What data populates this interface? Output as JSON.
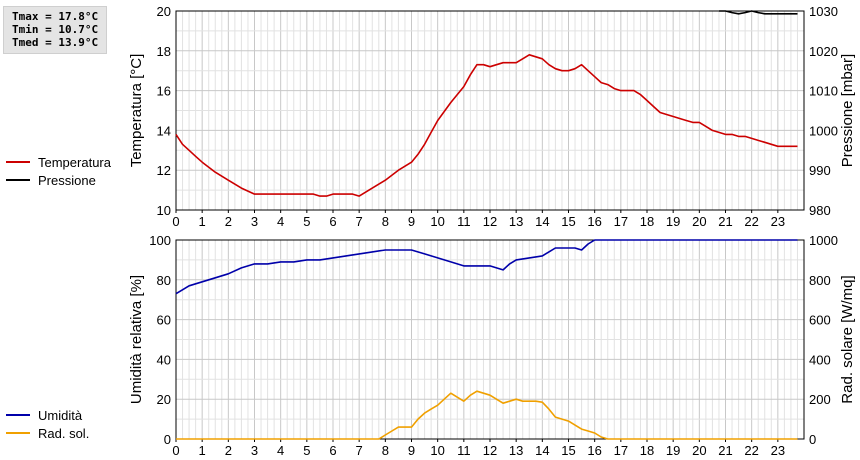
{
  "stats": {
    "tmax": "Tmax = 17.8°C",
    "tmin": "Tmin = 10.7°C",
    "tmed": "Tmed = 13.9°C"
  },
  "chart_data": [
    {
      "type": "line",
      "grid": true,
      "x_ticks": [
        0,
        1,
        2,
        3,
        4,
        5,
        6,
        7,
        8,
        9,
        10,
        11,
        12,
        13,
        14,
        15,
        16,
        17,
        18,
        19,
        20,
        21,
        22,
        23
      ],
      "xlim": [
        0,
        24
      ],
      "ylabel_left": "Temperatura [°C]",
      "ylabel_right": "Pressione [mbar]",
      "ylim_left": [
        10,
        20
      ],
      "yticks_left": [
        10,
        12,
        14,
        16,
        18,
        20
      ],
      "ylim_right": [
        980,
        1030
      ],
      "yticks_right": [
        980,
        990,
        1000,
        1010,
        1020,
        1030
      ],
      "legend": [
        "Temperatura",
        "Pressione"
      ],
      "legend_placement": "left",
      "series": [
        {
          "name": "Temperatura",
          "axis": "left",
          "color": "#cc0000",
          "x": [
            0,
            0.25,
            0.5,
            0.75,
            1,
            1.5,
            2,
            2.5,
            3,
            3.5,
            4,
            4.5,
            5,
            5.25,
            5.5,
            5.75,
            6,
            6.25,
            6.5,
            6.75,
            7,
            7.5,
            8,
            8.5,
            9,
            9.25,
            9.5,
            9.75,
            10,
            10.5,
            11,
            11.25,
            11.5,
            11.75,
            12,
            12.25,
            12.5,
            12.75,
            13,
            13.25,
            13.5,
            13.75,
            14,
            14.25,
            14.5,
            14.75,
            15,
            15.25,
            15.5,
            15.75,
            16,
            16.25,
            16.5,
            16.75,
            17,
            17.25,
            17.5,
            17.75,
            18,
            18.25,
            18.5,
            18.75,
            19,
            19.25,
            19.5,
            19.75,
            20,
            20.25,
            20.5,
            20.75,
            21,
            21.25,
            21.5,
            21.75,
            22,
            22.25,
            22.5,
            22.75,
            23,
            23.25,
            23.5,
            23.75
          ],
          "y": [
            13.8,
            13.3,
            13.0,
            12.7,
            12.4,
            11.9,
            11.5,
            11.1,
            10.8,
            10.8,
            10.8,
            10.8,
            10.8,
            10.8,
            10.7,
            10.7,
            10.8,
            10.8,
            10.8,
            10.8,
            10.7,
            11.1,
            11.5,
            12.0,
            12.4,
            12.8,
            13.3,
            13.9,
            14.5,
            15.4,
            16.2,
            16.8,
            17.3,
            17.3,
            17.2,
            17.3,
            17.4,
            17.4,
            17.4,
            17.6,
            17.8,
            17.7,
            17.6,
            17.3,
            17.1,
            17.0,
            17.0,
            17.1,
            17.3,
            17.0,
            16.7,
            16.4,
            16.3,
            16.1,
            16.0,
            16.0,
            16.0,
            15.8,
            15.5,
            15.2,
            14.9,
            14.8,
            14.7,
            14.6,
            14.5,
            14.4,
            14.4,
            14.2,
            14.0,
            13.9,
            13.8,
            13.8,
            13.7,
            13.7,
            13.6,
            13.5,
            13.4,
            13.3,
            13.2,
            13.2,
            13.2,
            13.2
          ]
        },
        {
          "name": "Pressione",
          "axis": "right",
          "color": "#000000",
          "x": [
            20.75,
            21,
            21.25,
            21.5,
            21.75,
            22,
            22.25,
            22.5,
            22.75,
            23,
            23.25,
            23.5,
            23.75
          ],
          "y": [
            1030,
            1030,
            1029.6,
            1029.3,
            1029.6,
            1030,
            1029.6,
            1029.3,
            1029.3,
            1029.3,
            1029.3,
            1029.3,
            1029.3
          ]
        }
      ]
    },
    {
      "type": "line",
      "grid": true,
      "x_ticks": [
        0,
        1,
        2,
        3,
        4,
        5,
        6,
        7,
        8,
        9,
        10,
        11,
        12,
        13,
        14,
        15,
        16,
        17,
        18,
        19,
        20,
        21,
        22,
        23
      ],
      "xlim": [
        0,
        24
      ],
      "ylabel_left": "Umidità relativa [%]",
      "ylabel_right": "Rad. solare [W/mq]",
      "ylim_left": [
        0,
        100
      ],
      "yticks_left": [
        0,
        20,
        40,
        60,
        80,
        100
      ],
      "ylim_right": [
        0,
        1000
      ],
      "yticks_right": [
        0,
        200,
        400,
        600,
        800,
        1000
      ],
      "legend": [
        "Umidità",
        "Rad. sol."
      ],
      "legend_placement": "left",
      "series": [
        {
          "name": "Umidità",
          "axis": "left",
          "color": "#0000aa",
          "x": [
            0,
            0.25,
            0.5,
            1,
            1.5,
            2,
            2.5,
            3,
            3.5,
            4,
            4.5,
            5,
            5.5,
            6,
            6.5,
            7,
            7.5,
            8,
            8.5,
            9,
            9.5,
            10,
            10.5,
            11,
            11.5,
            12,
            12.25,
            12.5,
            12.75,
            13,
            13.5,
            14,
            14.25,
            14.5,
            15,
            15.25,
            15.5,
            15.75,
            16,
            16.5,
            17,
            18,
            19,
            20,
            21,
            22,
            23,
            23.75
          ],
          "y": [
            73,
            75,
            77,
            79,
            81,
            83,
            86,
            88,
            88,
            89,
            89,
            90,
            90,
            91,
            92,
            93,
            94,
            95,
            95,
            95,
            93,
            91,
            89,
            87,
            87,
            87,
            86,
            85,
            88,
            90,
            91,
            92,
            94,
            96,
            96,
            96,
            95,
            98,
            100,
            100,
            100,
            100,
            100,
            100,
            100,
            100,
            100,
            100
          ]
        },
        {
          "name": "Rad. sol.",
          "axis": "right",
          "color": "#f0a000",
          "x": [
            0,
            1,
            2,
            3,
            4,
            5,
            6,
            7,
            7.5,
            7.75,
            8,
            8.25,
            8.5,
            8.75,
            9,
            9.25,
            9.5,
            9.75,
            10,
            10.25,
            10.5,
            10.75,
            11,
            11.25,
            11.5,
            11.75,
            12,
            12.25,
            12.5,
            12.75,
            13,
            13.25,
            13.5,
            13.75,
            14,
            14.25,
            14.5,
            14.75,
            15,
            15.25,
            15.5,
            15.75,
            16,
            16.25,
            16.5,
            17,
            18,
            19,
            20,
            21,
            22,
            23,
            23.75
          ],
          "y": [
            0,
            0,
            0,
            0,
            0,
            0,
            0,
            0,
            0,
            0,
            20,
            40,
            60,
            60,
            60,
            100,
            130,
            150,
            170,
            200,
            230,
            210,
            190,
            220,
            240,
            230,
            220,
            200,
            180,
            190,
            200,
            190,
            190,
            190,
            185,
            150,
            110,
            100,
            90,
            70,
            50,
            40,
            30,
            10,
            0,
            0,
            0,
            0,
            0,
            0,
            0,
            0,
            0
          ]
        }
      ]
    }
  ]
}
